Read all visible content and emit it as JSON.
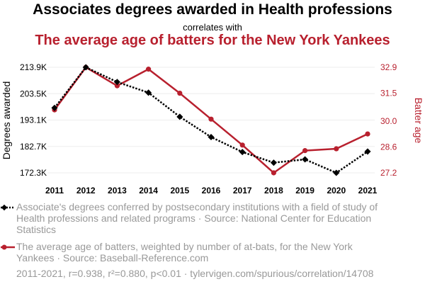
{
  "header": {
    "title": "Associates degrees awarded in Health professions",
    "subtitle": "correlates with",
    "title2": "The average age of batters for the New York Yankees"
  },
  "chart_data": {
    "type": "line",
    "x": [
      2011,
      2012,
      2013,
      2014,
      2015,
      2016,
      2017,
      2018,
      2019,
      2020,
      2021
    ],
    "left_axis": {
      "label": "Degrees awarded",
      "ticks": [
        172.3,
        182.7,
        193.1,
        203.5,
        213.9
      ],
      "tick_labels": [
        "172.3K",
        "182.7K",
        "193.1K",
        "203.5K",
        "213.9K"
      ],
      "ylim": [
        172.3,
        213.9
      ]
    },
    "right_axis": {
      "label": "Batter age",
      "ticks": [
        27.2,
        28.6,
        30.0,
        31.5,
        32.9
      ],
      "tick_labels": [
        "27.2",
        "28.6",
        "30.0",
        "31.5",
        "32.9"
      ],
      "ylim": [
        27.2,
        32.9
      ]
    },
    "series": [
      {
        "axis": "left",
        "color": "#000000",
        "style": "dotted",
        "marker": "diamond",
        "values": [
          197.9,
          213.9,
          208.1,
          203.9,
          194.4,
          186.4,
          180.5,
          176.3,
          177.6,
          172.3,
          180.7
        ]
      },
      {
        "axis": "right",
        "color": "#b8202e",
        "style": "solid",
        "marker": "circle",
        "values": [
          30.6,
          32.9,
          31.9,
          32.8,
          31.5,
          30.1,
          28.7,
          27.2,
          28.4,
          28.5,
          29.3
        ]
      }
    ],
    "grid": true
  },
  "legend": {
    "items": [
      {
        "label": "Associate's degrees conferred by postsecondary institutions with a field of study of Health professions and related programs · Source: National Center for Education Statistics"
      },
      {
        "label": "The average age of batters, weighted by number of at-bats, for the New York Yankees · Source: Baseball-Reference.com"
      }
    ]
  },
  "footer": {
    "text": "2011-2021, r=0.938, r²=0.880, p<0.01 · tylervigen.com/spurious/correlation/14708"
  }
}
